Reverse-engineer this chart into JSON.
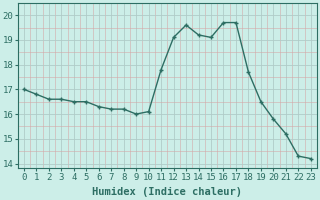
{
  "x": [
    0,
    1,
    2,
    3,
    4,
    5,
    6,
    7,
    8,
    9,
    10,
    11,
    12,
    13,
    14,
    15,
    16,
    17,
    18,
    19,
    20,
    21,
    22,
    23
  ],
  "y": [
    17.0,
    16.8,
    16.6,
    16.6,
    16.5,
    16.5,
    16.3,
    16.2,
    16.2,
    16.0,
    16.1,
    17.8,
    19.1,
    19.6,
    19.2,
    19.1,
    19.7,
    19.7,
    17.7,
    16.5,
    15.8,
    15.2,
    14.3,
    14.2
  ],
  "line_color": "#2d6e63",
  "marker": "+",
  "marker_size": 3.5,
  "bg_color": "#cceee8",
  "grid_color_major": "#b8ddd8",
  "grid_color_minor": "#d8f0ec",
  "xlabel": "Humidex (Indice chaleur)",
  "ylabel": "",
  "title": "",
  "xlim": [
    -0.5,
    23.5
  ],
  "ylim": [
    13.8,
    20.4
  ],
  "yticks": [
    14,
    15,
    16,
    17,
    18,
    19,
    20
  ],
  "xticks": [
    0,
    1,
    2,
    3,
    4,
    5,
    6,
    7,
    8,
    9,
    10,
    11,
    12,
    13,
    14,
    15,
    16,
    17,
    18,
    19,
    20,
    21,
    22,
    23
  ],
  "tick_color": "#2d6e63",
  "label_fontsize": 6.5,
  "axis_fontsize": 7.5
}
